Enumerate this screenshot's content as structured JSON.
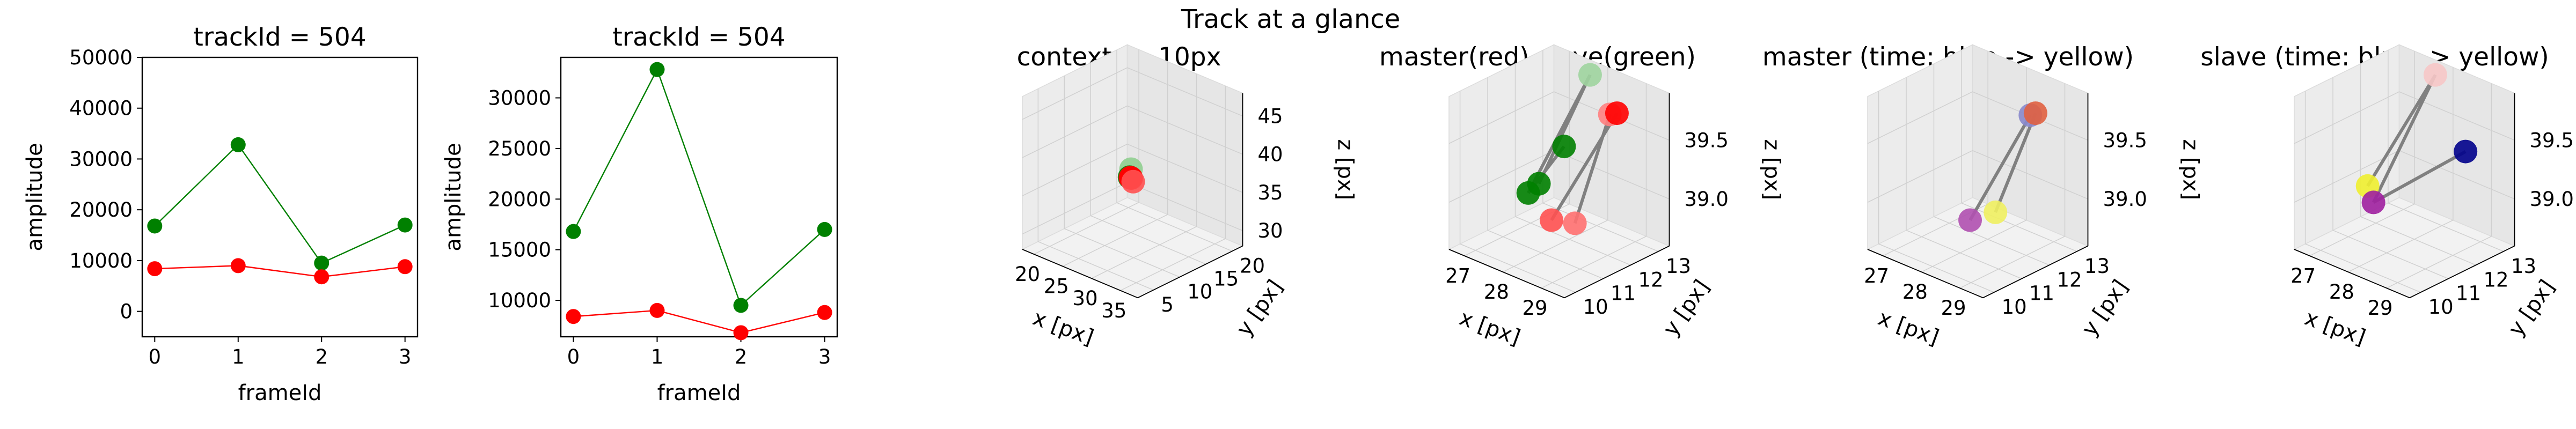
{
  "figure": {
    "suptitle": "Track at a glance"
  },
  "colors": {
    "master": "#ff0000",
    "slave": "#008000",
    "link": "#808080",
    "pane": "#f2f2f2"
  },
  "chart_data": [
    {
      "type": "line",
      "title": "trackId = 504",
      "xlabel": "frameId",
      "ylabel": "amplitude",
      "x": [
        0,
        1,
        2,
        3
      ],
      "xticks": [
        "0",
        "1",
        "2",
        "3"
      ],
      "yticks": [
        "0",
        "10000",
        "20000",
        "30000",
        "40000",
        "50000"
      ],
      "xlim": [
        -0.15,
        3.15
      ],
      "ylim": [
        -5000,
        50000
      ],
      "series": [
        {
          "color": "#008000",
          "values": [
            16800,
            32800,
            9500,
            17000
          ]
        },
        {
          "color": "#ff0000",
          "values": [
            8400,
            9000,
            6800,
            8800
          ]
        }
      ]
    },
    {
      "type": "line",
      "title": "trackId = 504",
      "xlabel": "frameId",
      "ylabel": "amplitude",
      "x": [
        0,
        1,
        2,
        3
      ],
      "xticks": [
        "0",
        "1",
        "2",
        "3"
      ],
      "yticks": [
        "10000",
        "15000",
        "20000",
        "25000",
        "30000"
      ],
      "xlim": [
        -0.15,
        3.15
      ],
      "ylim": [
        6400,
        34000
      ],
      "series": [
        {
          "color": "#008000",
          "values": [
            16800,
            32800,
            9500,
            17000
          ]
        },
        {
          "color": "#ff0000",
          "values": [
            8400,
            9000,
            6800,
            8800
          ]
        }
      ]
    },
    {
      "type": "scatter3d",
      "title": "context +- 10px",
      "xlabel": "x [px]",
      "ylabel": "y [px]",
      "zlabel": "z [px]",
      "xticks": [
        "20",
        "25",
        "30",
        "35"
      ],
      "yticks": [
        "5",
        "10",
        "15",
        "20"
      ],
      "zticks": [
        "30",
        "35",
        "40",
        "45"
      ],
      "xlim": [
        18,
        38
      ],
      "ylim": [
        2,
        22
      ],
      "zlim": [
        28,
        48
      ],
      "points": [
        {
          "x": 28.2,
          "y": 11.5,
          "z": 38.5,
          "color": "#8fce8f"
        },
        {
          "x": 27.4,
          "y": 12.1,
          "z": 37.0,
          "color": "#008000"
        },
        {
          "x": 28.0,
          "y": 11.6,
          "z": 37.3,
          "color": "#ff0000"
        },
        {
          "x": 28.6,
          "y": 11.1,
          "z": 37.6,
          "color": "#ff0000"
        },
        {
          "x": 28.3,
          "y": 11.8,
          "z": 36.8,
          "color": "#ff5050"
        }
      ],
      "links": []
    },
    {
      "type": "scatter3d",
      "title": "master(red) slave(green)",
      "xlabel": "x [px]",
      "ylabel": "y [px]",
      "zlabel": "z [px]",
      "xticks": [
        "27",
        "28",
        "29"
      ],
      "yticks": [
        "10",
        "11",
        "12",
        "13"
      ],
      "zticks": [
        "39.0",
        "39.5"
      ],
      "xlim": [
        26.6,
        29.6
      ],
      "ylim": [
        9.6,
        13.4
      ],
      "zlim": [
        38.6,
        39.9
      ],
      "points": [
        {
          "x": 27.9,
          "y": 12.9,
          "z": 39.88,
          "color": "#9fd49f"
        },
        {
          "x": 27.0,
          "y": 12.3,
          "z": 38.9,
          "color": "#008000"
        },
        {
          "x": 28.05,
          "y": 10.45,
          "z": 39.18,
          "color": "#008000"
        },
        {
          "x": 28.3,
          "y": 11.4,
          "z": 39.5,
          "color": "#008000"
        },
        {
          "x": 28.7,
          "y": 12.5,
          "z": 39.7,
          "color": "#ff8080"
        },
        {
          "x": 29.1,
          "y": 12.2,
          "z": 39.8,
          "color": "#ff0000"
        },
        {
          "x": 29.3,
          "y": 10.4,
          "z": 39.1,
          "color": "#ff7070"
        },
        {
          "x": 29.05,
          "y": 9.9,
          "z": 39.15,
          "color": "#ff5050"
        }
      ],
      "links": [
        [
          0,
          1
        ],
        [
          0,
          2
        ],
        [
          2,
          3
        ],
        [
          4,
          6
        ],
        [
          5,
          7
        ]
      ]
    },
    {
      "type": "scatter3d",
      "title": "master (time: blue -> yellow)",
      "xlabel": "x [px]",
      "ylabel": "y [px]",
      "zlabel": "z [px]",
      "xticks": [
        "27",
        "28",
        "29"
      ],
      "yticks": [
        "10",
        "11",
        "12",
        "13"
      ],
      "zticks": [
        "39.0",
        "39.5"
      ],
      "xlim": [
        26.6,
        29.6
      ],
      "ylim": [
        9.6,
        13.4
      ],
      "zlim": [
        38.6,
        39.9
      ],
      "points": [
        {
          "x": 28.75,
          "y": 12.5,
          "z": 39.7,
          "color": "#8888cc"
        },
        {
          "x": 29.1,
          "y": 12.2,
          "z": 39.8,
          "color": "#e06040"
        },
        {
          "x": 29.35,
          "y": 10.4,
          "z": 39.2,
          "color": "#f0f060"
        },
        {
          "x": 29.05,
          "y": 9.9,
          "z": 39.15,
          "color": "#b050b0"
        }
      ],
      "links": [
        [
          0,
          3
        ],
        [
          1,
          2
        ]
      ]
    },
    {
      "type": "scatter3d",
      "title": "slave (time: blue -> yellow)",
      "xlabel": "x [px]",
      "ylabel": "y [px]",
      "zlabel": "z [px]",
      "xticks": [
        "27",
        "28",
        "29"
      ],
      "yticks": [
        "10",
        "11",
        "12",
        "13"
      ],
      "zticks": [
        "39.0",
        "39.5"
      ],
      "xlim": [
        26.6,
        29.6
      ],
      "ylim": [
        9.6,
        13.4
      ],
      "zlim": [
        38.6,
        39.9
      ],
      "points": [
        {
          "x": 27.9,
          "y": 12.9,
          "z": 39.88,
          "color": "#f6c6c6"
        },
        {
          "x": 28.9,
          "y": 12.6,
          "z": 39.4,
          "color": "#00008b"
        },
        {
          "x": 27.0,
          "y": 11.7,
          "z": 38.95,
          "color": "#f0f030"
        },
        {
          "x": 28.05,
          "y": 10.45,
          "z": 39.1,
          "color": "#a020a0"
        }
      ],
      "links": [
        [
          0,
          2
        ],
        [
          0,
          3
        ],
        [
          3,
          1
        ]
      ]
    }
  ]
}
